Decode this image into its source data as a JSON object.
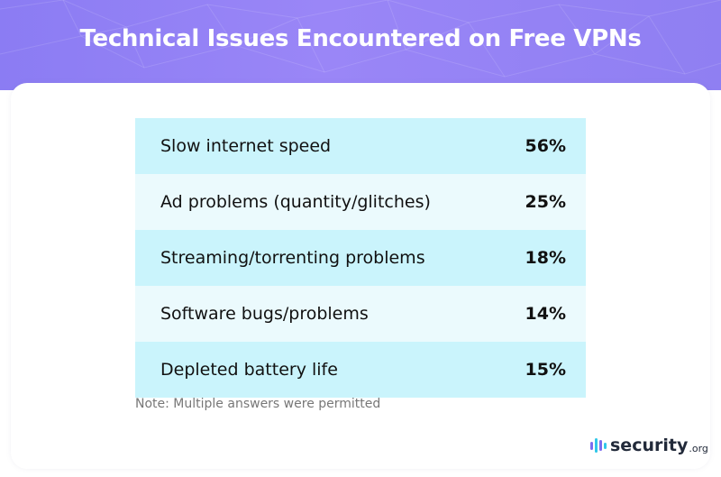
{
  "title": "Technical Issues Encountered on Free VPNs",
  "note": "Note: Multiple answers were permitted",
  "logo": {
    "word": "security",
    "tld": ".org"
  },
  "colors": {
    "header": "#8b7cf3",
    "row_dark": "#caf4fc",
    "row_light": "#ebfafd"
  },
  "chart_data": {
    "type": "table",
    "title": "Technical Issues Encountered on Free VPNs",
    "rows": [
      {
        "label": "Slow internet speed",
        "value": "56%"
      },
      {
        "label": "Ad problems (quantity/glitches)",
        "value": "25%"
      },
      {
        "label": "Streaming/torrenting problems",
        "value": "18%"
      },
      {
        "label": "Software bugs/problems",
        "value": "14%"
      },
      {
        "label": "Depleted battery life",
        "value": "15%"
      }
    ]
  }
}
